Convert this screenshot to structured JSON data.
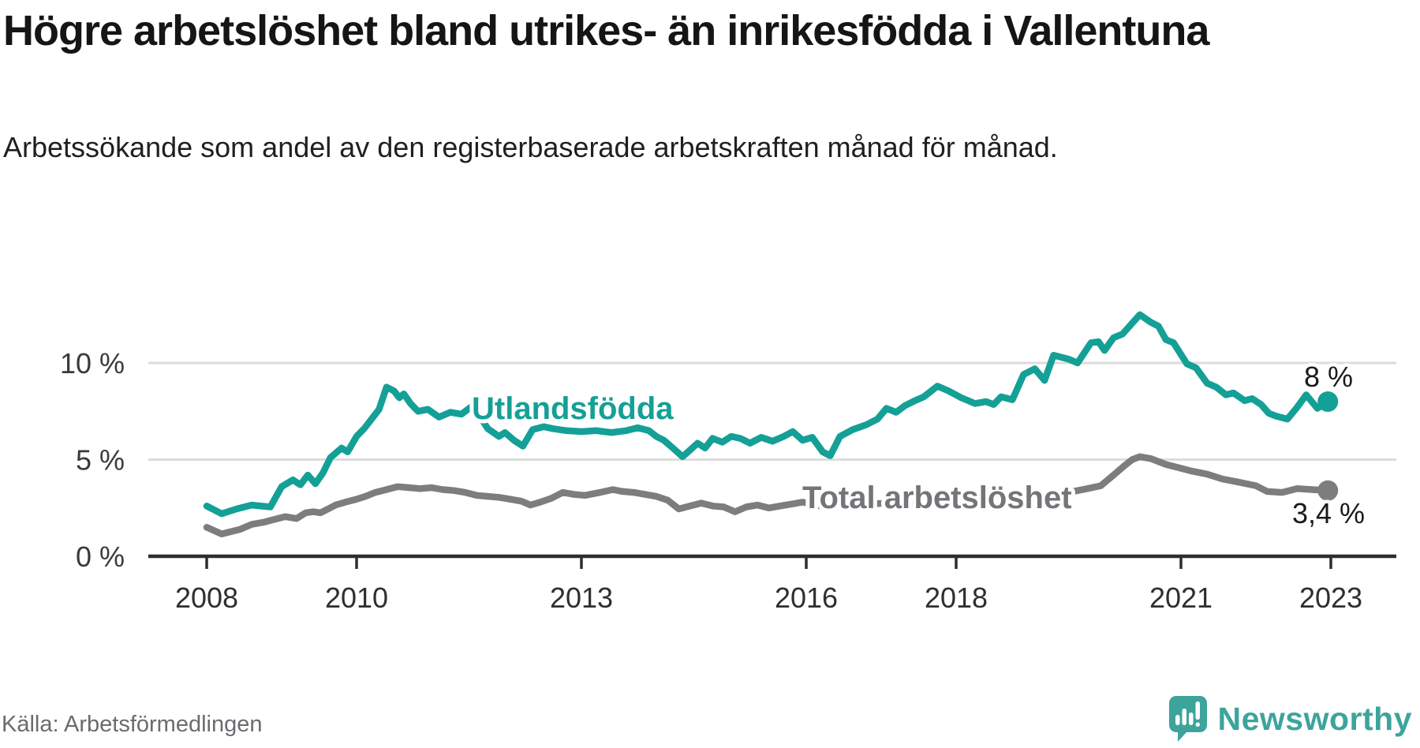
{
  "header": {
    "title": "Högre arbetslöshet bland utrikes- än inrikesfödda i Vallentuna",
    "subtitle": "Arbetssökande som andel av den registerbaserade arbetskraften månad för månad."
  },
  "footer": {
    "source": "Källa: Arbetsförmedlingen",
    "brand": "Newsworthy",
    "brand_icon": "newsworthy-speech-bubble-chart-icon"
  },
  "colors": {
    "foreign_born_line": "#14a096",
    "total_line": "#7d7d80",
    "axis": "#2e2e31",
    "gridline": "#dcdcdc",
    "brand_teal": "#3da49c"
  },
  "chart_data": {
    "type": "line",
    "title": "Högre arbetslöshet bland utrikes- än inrikesfödda i Vallentuna",
    "subtitle": "Arbetssökande som andel av den registerbaserade arbetskraften månad för månad.",
    "unit": "%",
    "xlim": [
      2007.8,
      2023.3
    ],
    "ylim": [
      0,
      13
    ],
    "grid": "horizontal-only",
    "legend_position": "inline-labels",
    "x_ticks": [
      2008,
      2010,
      2013,
      2016,
      2018,
      2021,
      2023
    ],
    "y_ticks": [
      {
        "value": 0,
        "label": "0 %"
      },
      {
        "value": 5,
        "label": "5 %"
      },
      {
        "value": 10,
        "label": "10 %"
      }
    ],
    "y_gridlines": [
      5,
      10
    ],
    "series": [
      {
        "name": "Utlandsfödda",
        "color": "#14a096",
        "end_label": "8 %",
        "end_value": 8.0,
        "points": [
          [
            2008.0,
            2.6
          ],
          [
            2008.2,
            2.2
          ],
          [
            2008.4,
            2.45
          ],
          [
            2008.6,
            2.65
          ],
          [
            2008.85,
            2.55
          ],
          [
            2009.0,
            3.6
          ],
          [
            2009.15,
            3.95
          ],
          [
            2009.25,
            3.7
          ],
          [
            2009.35,
            4.2
          ],
          [
            2009.45,
            3.75
          ],
          [
            2009.55,
            4.3
          ],
          [
            2009.65,
            5.1
          ],
          [
            2009.8,
            5.6
          ],
          [
            2009.88,
            5.4
          ],
          [
            2010.0,
            6.2
          ],
          [
            2010.1,
            6.6
          ],
          [
            2010.2,
            7.1
          ],
          [
            2010.3,
            7.6
          ],
          [
            2010.4,
            8.75
          ],
          [
            2010.5,
            8.55
          ],
          [
            2010.57,
            8.2
          ],
          [
            2010.63,
            8.4
          ],
          [
            2010.72,
            7.9
          ],
          [
            2010.82,
            7.5
          ],
          [
            2010.95,
            7.6
          ],
          [
            2011.1,
            7.2
          ],
          [
            2011.25,
            7.45
          ],
          [
            2011.4,
            7.35
          ],
          [
            2011.52,
            7.7
          ],
          [
            2011.65,
            7.2
          ],
          [
            2011.75,
            6.6
          ],
          [
            2011.9,
            6.2
          ],
          [
            2011.98,
            6.4
          ],
          [
            2012.1,
            6.0
          ],
          [
            2012.22,
            5.7
          ],
          [
            2012.35,
            6.55
          ],
          [
            2012.5,
            6.7
          ],
          [
            2012.62,
            6.6
          ],
          [
            2012.8,
            6.5
          ],
          [
            2013.0,
            6.45
          ],
          [
            2013.2,
            6.5
          ],
          [
            2013.4,
            6.4
          ],
          [
            2013.6,
            6.5
          ],
          [
            2013.75,
            6.65
          ],
          [
            2013.9,
            6.5
          ],
          [
            2014.0,
            6.2
          ],
          [
            2014.1,
            6.0
          ],
          [
            2014.22,
            5.6
          ],
          [
            2014.35,
            5.15
          ],
          [
            2014.45,
            5.5
          ],
          [
            2014.55,
            5.85
          ],
          [
            2014.65,
            5.6
          ],
          [
            2014.75,
            6.1
          ],
          [
            2014.88,
            5.9
          ],
          [
            2015.0,
            6.2
          ],
          [
            2015.12,
            6.1
          ],
          [
            2015.25,
            5.85
          ],
          [
            2015.4,
            6.15
          ],
          [
            2015.55,
            5.95
          ],
          [
            2015.7,
            6.2
          ],
          [
            2015.82,
            6.45
          ],
          [
            2015.95,
            6.0
          ],
          [
            2016.08,
            6.15
          ],
          [
            2016.22,
            5.4
          ],
          [
            2016.32,
            5.2
          ],
          [
            2016.45,
            6.2
          ],
          [
            2016.62,
            6.55
          ],
          [
            2016.8,
            6.8
          ],
          [
            2016.95,
            7.1
          ],
          [
            2017.07,
            7.65
          ],
          [
            2017.2,
            7.45
          ],
          [
            2017.32,
            7.8
          ],
          [
            2017.45,
            8.05
          ],
          [
            2017.57,
            8.25
          ],
          [
            2017.75,
            8.8
          ],
          [
            2017.9,
            8.55
          ],
          [
            2018.07,
            8.2
          ],
          [
            2018.25,
            7.9
          ],
          [
            2018.4,
            8.0
          ],
          [
            2018.5,
            7.85
          ],
          [
            2018.6,
            8.25
          ],
          [
            2018.75,
            8.1
          ],
          [
            2018.9,
            9.4
          ],
          [
            2019.05,
            9.7
          ],
          [
            2019.18,
            9.1
          ],
          [
            2019.3,
            10.4
          ],
          [
            2019.5,
            10.2
          ],
          [
            2019.62,
            10.0
          ],
          [
            2019.8,
            11.05
          ],
          [
            2019.9,
            11.1
          ],
          [
            2019.98,
            10.65
          ],
          [
            2020.1,
            11.3
          ],
          [
            2020.22,
            11.5
          ],
          [
            2020.45,
            12.5
          ],
          [
            2020.6,
            12.1
          ],
          [
            2020.7,
            11.9
          ],
          [
            2020.8,
            11.2
          ],
          [
            2020.9,
            11.05
          ],
          [
            2021.08,
            9.95
          ],
          [
            2021.2,
            9.75
          ],
          [
            2021.35,
            8.95
          ],
          [
            2021.47,
            8.75
          ],
          [
            2021.6,
            8.35
          ],
          [
            2021.7,
            8.45
          ],
          [
            2021.85,
            8.05
          ],
          [
            2021.95,
            8.15
          ],
          [
            2022.07,
            7.85
          ],
          [
            2022.17,
            7.4
          ],
          [
            2022.27,
            7.25
          ],
          [
            2022.42,
            7.1
          ],
          [
            2022.55,
            7.7
          ],
          [
            2022.67,
            8.35
          ],
          [
            2022.82,
            7.65
          ],
          [
            2022.96,
            8.0
          ]
        ]
      },
      {
        "name": "Total arbetslöshet",
        "color": "#7d7d80",
        "end_label": "3,4 %",
        "end_value": 3.4,
        "points": [
          [
            2008.0,
            1.5
          ],
          [
            2008.2,
            1.15
          ],
          [
            2008.45,
            1.4
          ],
          [
            2008.6,
            1.65
          ],
          [
            2008.75,
            1.75
          ],
          [
            2008.9,
            1.9
          ],
          [
            2009.05,
            2.05
          ],
          [
            2009.2,
            1.95
          ],
          [
            2009.32,
            2.25
          ],
          [
            2009.42,
            2.3
          ],
          [
            2009.52,
            2.25
          ],
          [
            2009.62,
            2.45
          ],
          [
            2009.72,
            2.65
          ],
          [
            2009.85,
            2.8
          ],
          [
            2010.0,
            2.95
          ],
          [
            2010.12,
            3.1
          ],
          [
            2010.25,
            3.3
          ],
          [
            2010.4,
            3.45
          ],
          [
            2010.55,
            3.6
          ],
          [
            2010.7,
            3.55
          ],
          [
            2010.85,
            3.5
          ],
          [
            2011.0,
            3.55
          ],
          [
            2011.15,
            3.45
          ],
          [
            2011.3,
            3.4
          ],
          [
            2011.45,
            3.3
          ],
          [
            2011.6,
            3.15
          ],
          [
            2011.75,
            3.1
          ],
          [
            2011.9,
            3.05
          ],
          [
            2012.05,
            2.95
          ],
          [
            2012.2,
            2.85
          ],
          [
            2012.32,
            2.65
          ],
          [
            2012.45,
            2.8
          ],
          [
            2012.6,
            3.0
          ],
          [
            2012.75,
            3.3
          ],
          [
            2012.9,
            3.2
          ],
          [
            2013.05,
            3.15
          ],
          [
            2013.25,
            3.3
          ],
          [
            2013.42,
            3.45
          ],
          [
            2013.55,
            3.35
          ],
          [
            2013.7,
            3.3
          ],
          [
            2013.85,
            3.2
          ],
          [
            2014.0,
            3.1
          ],
          [
            2014.15,
            2.9
          ],
          [
            2014.3,
            2.45
          ],
          [
            2014.45,
            2.6
          ],
          [
            2014.6,
            2.75
          ],
          [
            2014.75,
            2.6
          ],
          [
            2014.9,
            2.55
          ],
          [
            2015.05,
            2.3
          ],
          [
            2015.2,
            2.55
          ],
          [
            2015.35,
            2.65
          ],
          [
            2015.5,
            2.5
          ],
          [
            2015.65,
            2.6
          ],
          [
            2015.8,
            2.7
          ],
          [
            2015.95,
            2.8
          ],
          [
            2016.2,
            2.6
          ],
          [
            2016.5,
            2.65
          ],
          [
            2016.8,
            2.7
          ],
          [
            2017.1,
            2.75
          ],
          [
            2017.4,
            2.8
          ],
          [
            2017.7,
            2.85
          ],
          [
            2018.0,
            2.9
          ],
          [
            2018.3,
            3.0
          ],
          [
            2018.6,
            3.05
          ],
          [
            2018.9,
            3.1
          ],
          [
            2019.2,
            3.2
          ],
          [
            2019.5,
            3.3
          ],
          [
            2019.75,
            3.5
          ],
          [
            2019.93,
            3.65
          ],
          [
            2020.1,
            4.2
          ],
          [
            2020.25,
            4.7
          ],
          [
            2020.35,
            5.0
          ],
          [
            2020.45,
            5.15
          ],
          [
            2020.6,
            5.05
          ],
          [
            2020.8,
            4.75
          ],
          [
            2021.0,
            4.55
          ],
          [
            2021.15,
            4.4
          ],
          [
            2021.35,
            4.25
          ],
          [
            2021.55,
            4.0
          ],
          [
            2021.75,
            3.85
          ],
          [
            2022.0,
            3.65
          ],
          [
            2022.15,
            3.35
          ],
          [
            2022.35,
            3.3
          ],
          [
            2022.55,
            3.5
          ],
          [
            2022.75,
            3.45
          ],
          [
            2022.96,
            3.4
          ]
        ]
      }
    ]
  }
}
